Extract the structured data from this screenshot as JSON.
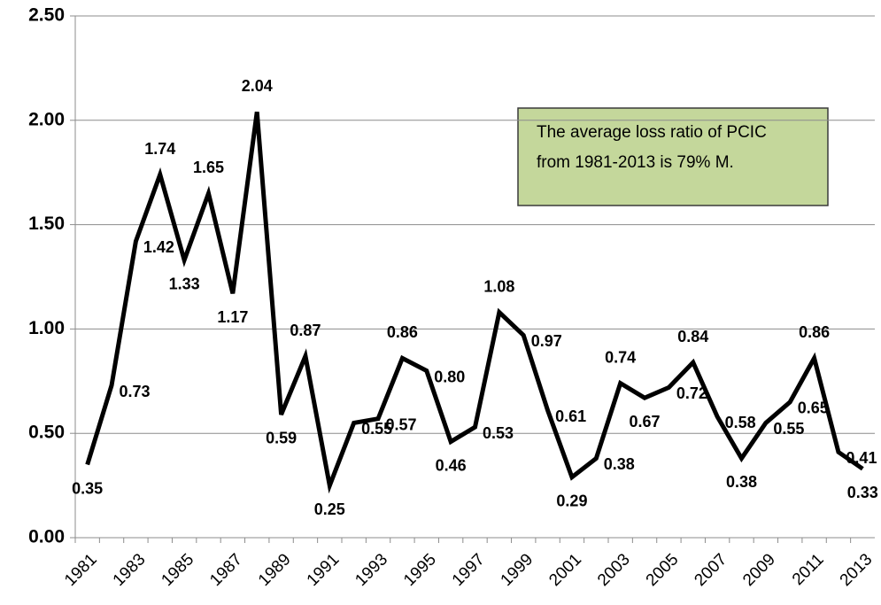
{
  "chart_data": {
    "type": "line",
    "categories": [
      "1981",
      null,
      "1983",
      null,
      "1985",
      null,
      "1987",
      null,
      "1989",
      null,
      "1991",
      null,
      "1993",
      null,
      "1995",
      null,
      "1997",
      null,
      "1999",
      null,
      "2001",
      null,
      "2003",
      null,
      "2005",
      null,
      "2007",
      null,
      "2009",
      null,
      "2011",
      null,
      "2013"
    ],
    "values": [
      0.35,
      0.73,
      1.42,
      1.74,
      1.33,
      1.65,
      1.17,
      2.04,
      0.59,
      0.87,
      0.25,
      0.55,
      0.57,
      0.86,
      0.8,
      0.46,
      0.53,
      1.08,
      0.97,
      0.61,
      0.29,
      0.38,
      0.74,
      0.67,
      0.72,
      0.84,
      0.58,
      0.38,
      0.55,
      0.65,
      0.86,
      0.41,
      0.33
    ],
    "value_labels": [
      "0.35",
      "0.73",
      "1.42",
      "1.74",
      "1.33",
      "1.65",
      "1.17",
      "2.04",
      "0.59",
      "0.87",
      "0.25",
      "0.55",
      "0.57",
      "0.86",
      "0.80",
      "0.46",
      "0.53",
      "1.08",
      "0.97",
      "0.61",
      "0.29",
      "0.38",
      "0.74",
      "0.67",
      "0.72",
      "0.84",
      "0.58",
      "0.38",
      "0.55",
      "0.65",
      "0.86",
      "0.41",
      "0.33"
    ],
    "color": "#000000",
    "ylim": [
      0,
      2.5
    ],
    "yticks": [
      {
        "value": 0,
        "label": "0.00"
      },
      {
        "value": 0.5,
        "label": "0.50"
      },
      {
        "value": 1,
        "label": "1.00"
      },
      {
        "value": 1.5,
        "label": "1.50"
      },
      {
        "value": 2,
        "label": "2.00"
      },
      {
        "value": 2.5,
        "label": "2.50"
      }
    ],
    "grid": true,
    "annotation": [
      "The average loss ratio of PCIC",
      "from 1981-2013 is 79% M."
    ]
  }
}
